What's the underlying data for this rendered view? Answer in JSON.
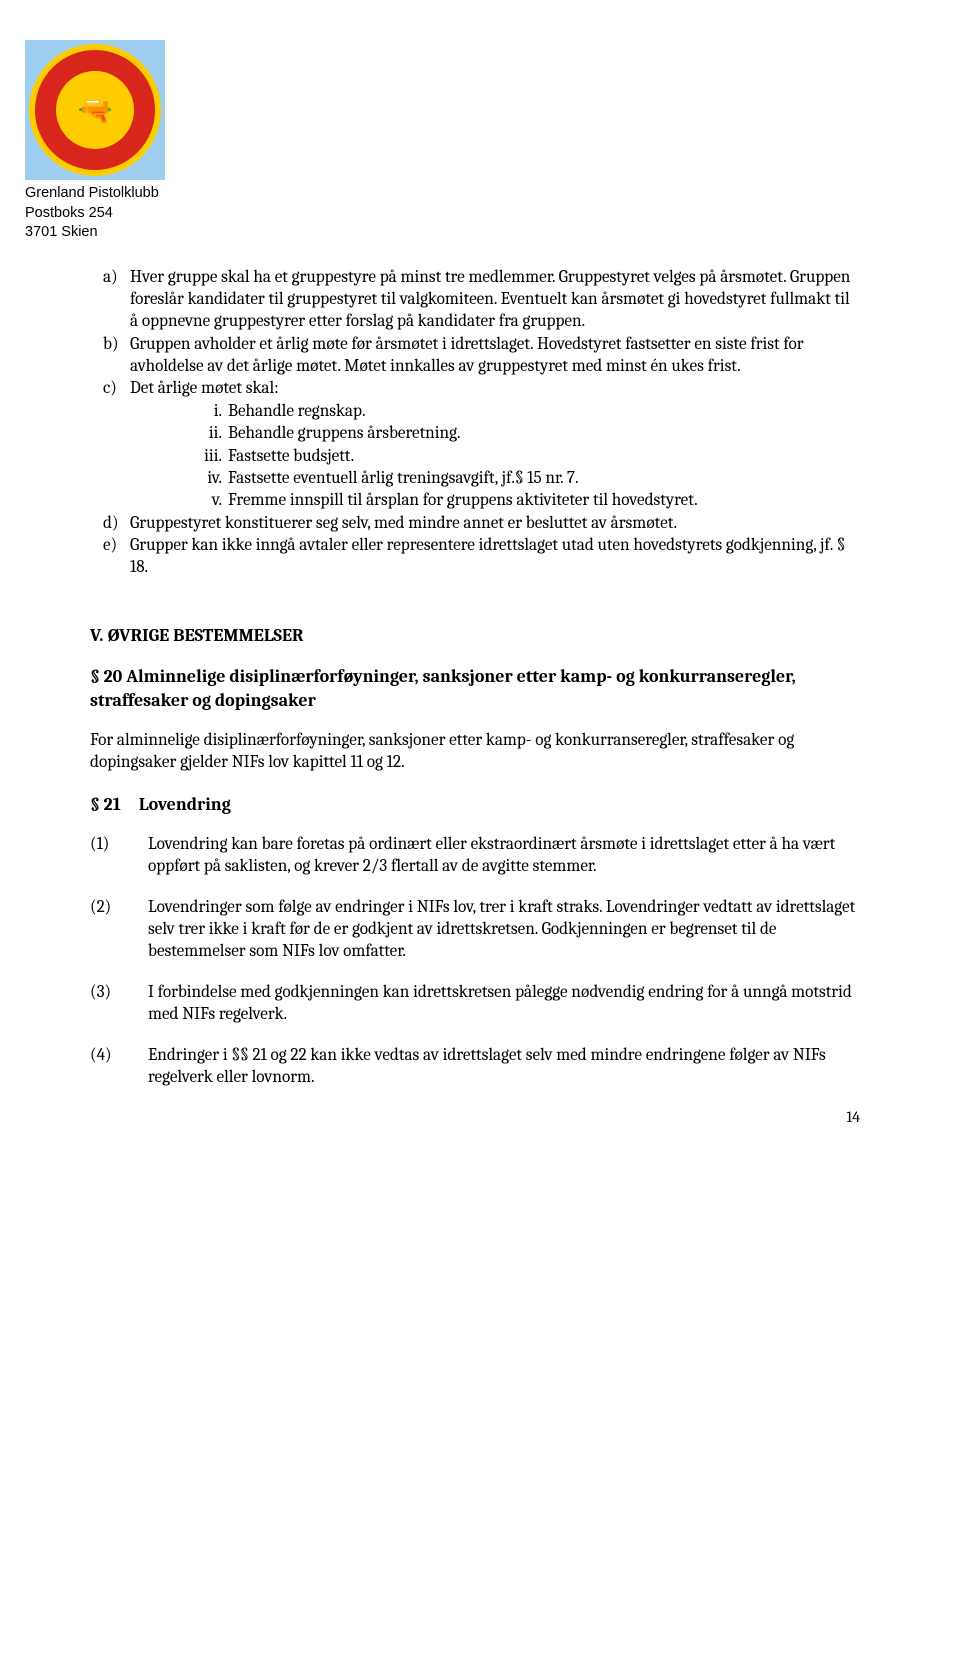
{
  "org": {
    "name": "Grenland Pistolklubb",
    "address1": "Postboks 254",
    "address2": "3701 Skien"
  },
  "list": {
    "a": "Hver gruppe skal ha et gruppestyre på minst tre medlemmer. Gruppestyret velges på årsmøtet. Gruppen foreslår kandidater til gruppestyret til valgkomiteen. Eventuelt kan årsmøtet gi hovedstyret fullmakt til å oppnevne gruppestyrer etter forslag på kandidater fra gruppen.",
    "b": "Gruppen avholder et årlig møte før årsmøtet i idrettslaget. Hovedstyret fastsetter en siste frist for avholdelse av det årlige møtet. Møtet innkalles av gruppestyret med minst én ukes frist.",
    "c_intro": "Det årlige møtet skal:",
    "c_items": {
      "i": "Behandle regnskap.",
      "ii": "Behandle gruppens årsberetning.",
      "iii": "Fastsette budsjett.",
      "iv": "Fastsette eventuell årlig treningsavgift, jf.§ 15 nr. 7.",
      "v": "Fremme innspill til årsplan for gruppens aktiviteter til hovedstyret."
    },
    "d": "Gruppestyret konstituerer seg selv, med mindre annet er besluttet av årsmøtet.",
    "e": "Grupper kan ikke inngå avtaler eller representere idrettslaget utad uten hovedstyrets godkjenning, jf. § 18."
  },
  "sectionV": "V. ØVRIGE BESTEMMELSER",
  "p20": {
    "title": "§ 20 Alminnelige disiplinærforføyninger, sanksjoner etter kamp- og konkurranseregler, straffesaker og dopingsaker",
    "body": "For alminnelige disiplinærforføyninger, sanksjoner etter kamp- og konkurranseregler, straffesaker og dopingsaker gjelder NIFs lov kapittel 11 og 12."
  },
  "p21": {
    "title": "§ 21 Lovendring",
    "items": {
      "n1": "Lovendring kan bare foretas på ordinært eller ekstraordinært årsmøte i idrettslaget etter å ha vært oppført på saklisten, og krever 2/3 flertall av de avgitte stemmer.",
      "n2": "Lovendringer som følge av endringer i NIFs lov, trer i kraft straks. Lovendringer vedtatt av idrettslaget selv trer ikke i kraft før de er godkjent av idrettskretsen. Godkjenningen er begrenset til de bestemmelser som NIFs lov omfatter.",
      "n3": "I forbindelse med godkjenningen kan idrettskretsen pålegge nødvendig endring for å unngå motstrid med NIFs regelverk.",
      "n4": "Endringer i §§ 21 og 22 kan ikke vedtas av idrettslaget selv med mindre endringene følger av NIFs regelverk eller lovnorm."
    }
  },
  "pageNumber": "14"
}
